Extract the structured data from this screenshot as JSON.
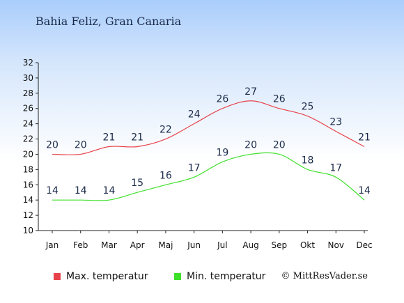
{
  "title": "Bahia Feliz, Gran Canaria",
  "copyright": "© MittResVader.se",
  "chart_data": {
    "type": "line",
    "categories": [
      "Jan",
      "Feb",
      "Mar",
      "Apr",
      "Maj",
      "Jun",
      "Jul",
      "Aug",
      "Sep",
      "Okt",
      "Nov",
      "Dec"
    ],
    "ylim": [
      10,
      32
    ],
    "yticks": [
      10,
      12,
      14,
      16,
      18,
      20,
      22,
      24,
      26,
      28,
      30,
      32
    ],
    "grid": false,
    "legend_position": "bottom",
    "series": [
      {
        "name": "Max. temperatur",
        "color": "#e8434a",
        "values": [
          20,
          20,
          21,
          21,
          22,
          24,
          26,
          27,
          26,
          25,
          23,
          21
        ]
      },
      {
        "name": "Min. temperatur",
        "color": "#3ee02a",
        "values": [
          14,
          14,
          14,
          15,
          16,
          17,
          19,
          20,
          20,
          18,
          17,
          14
        ]
      }
    ]
  }
}
